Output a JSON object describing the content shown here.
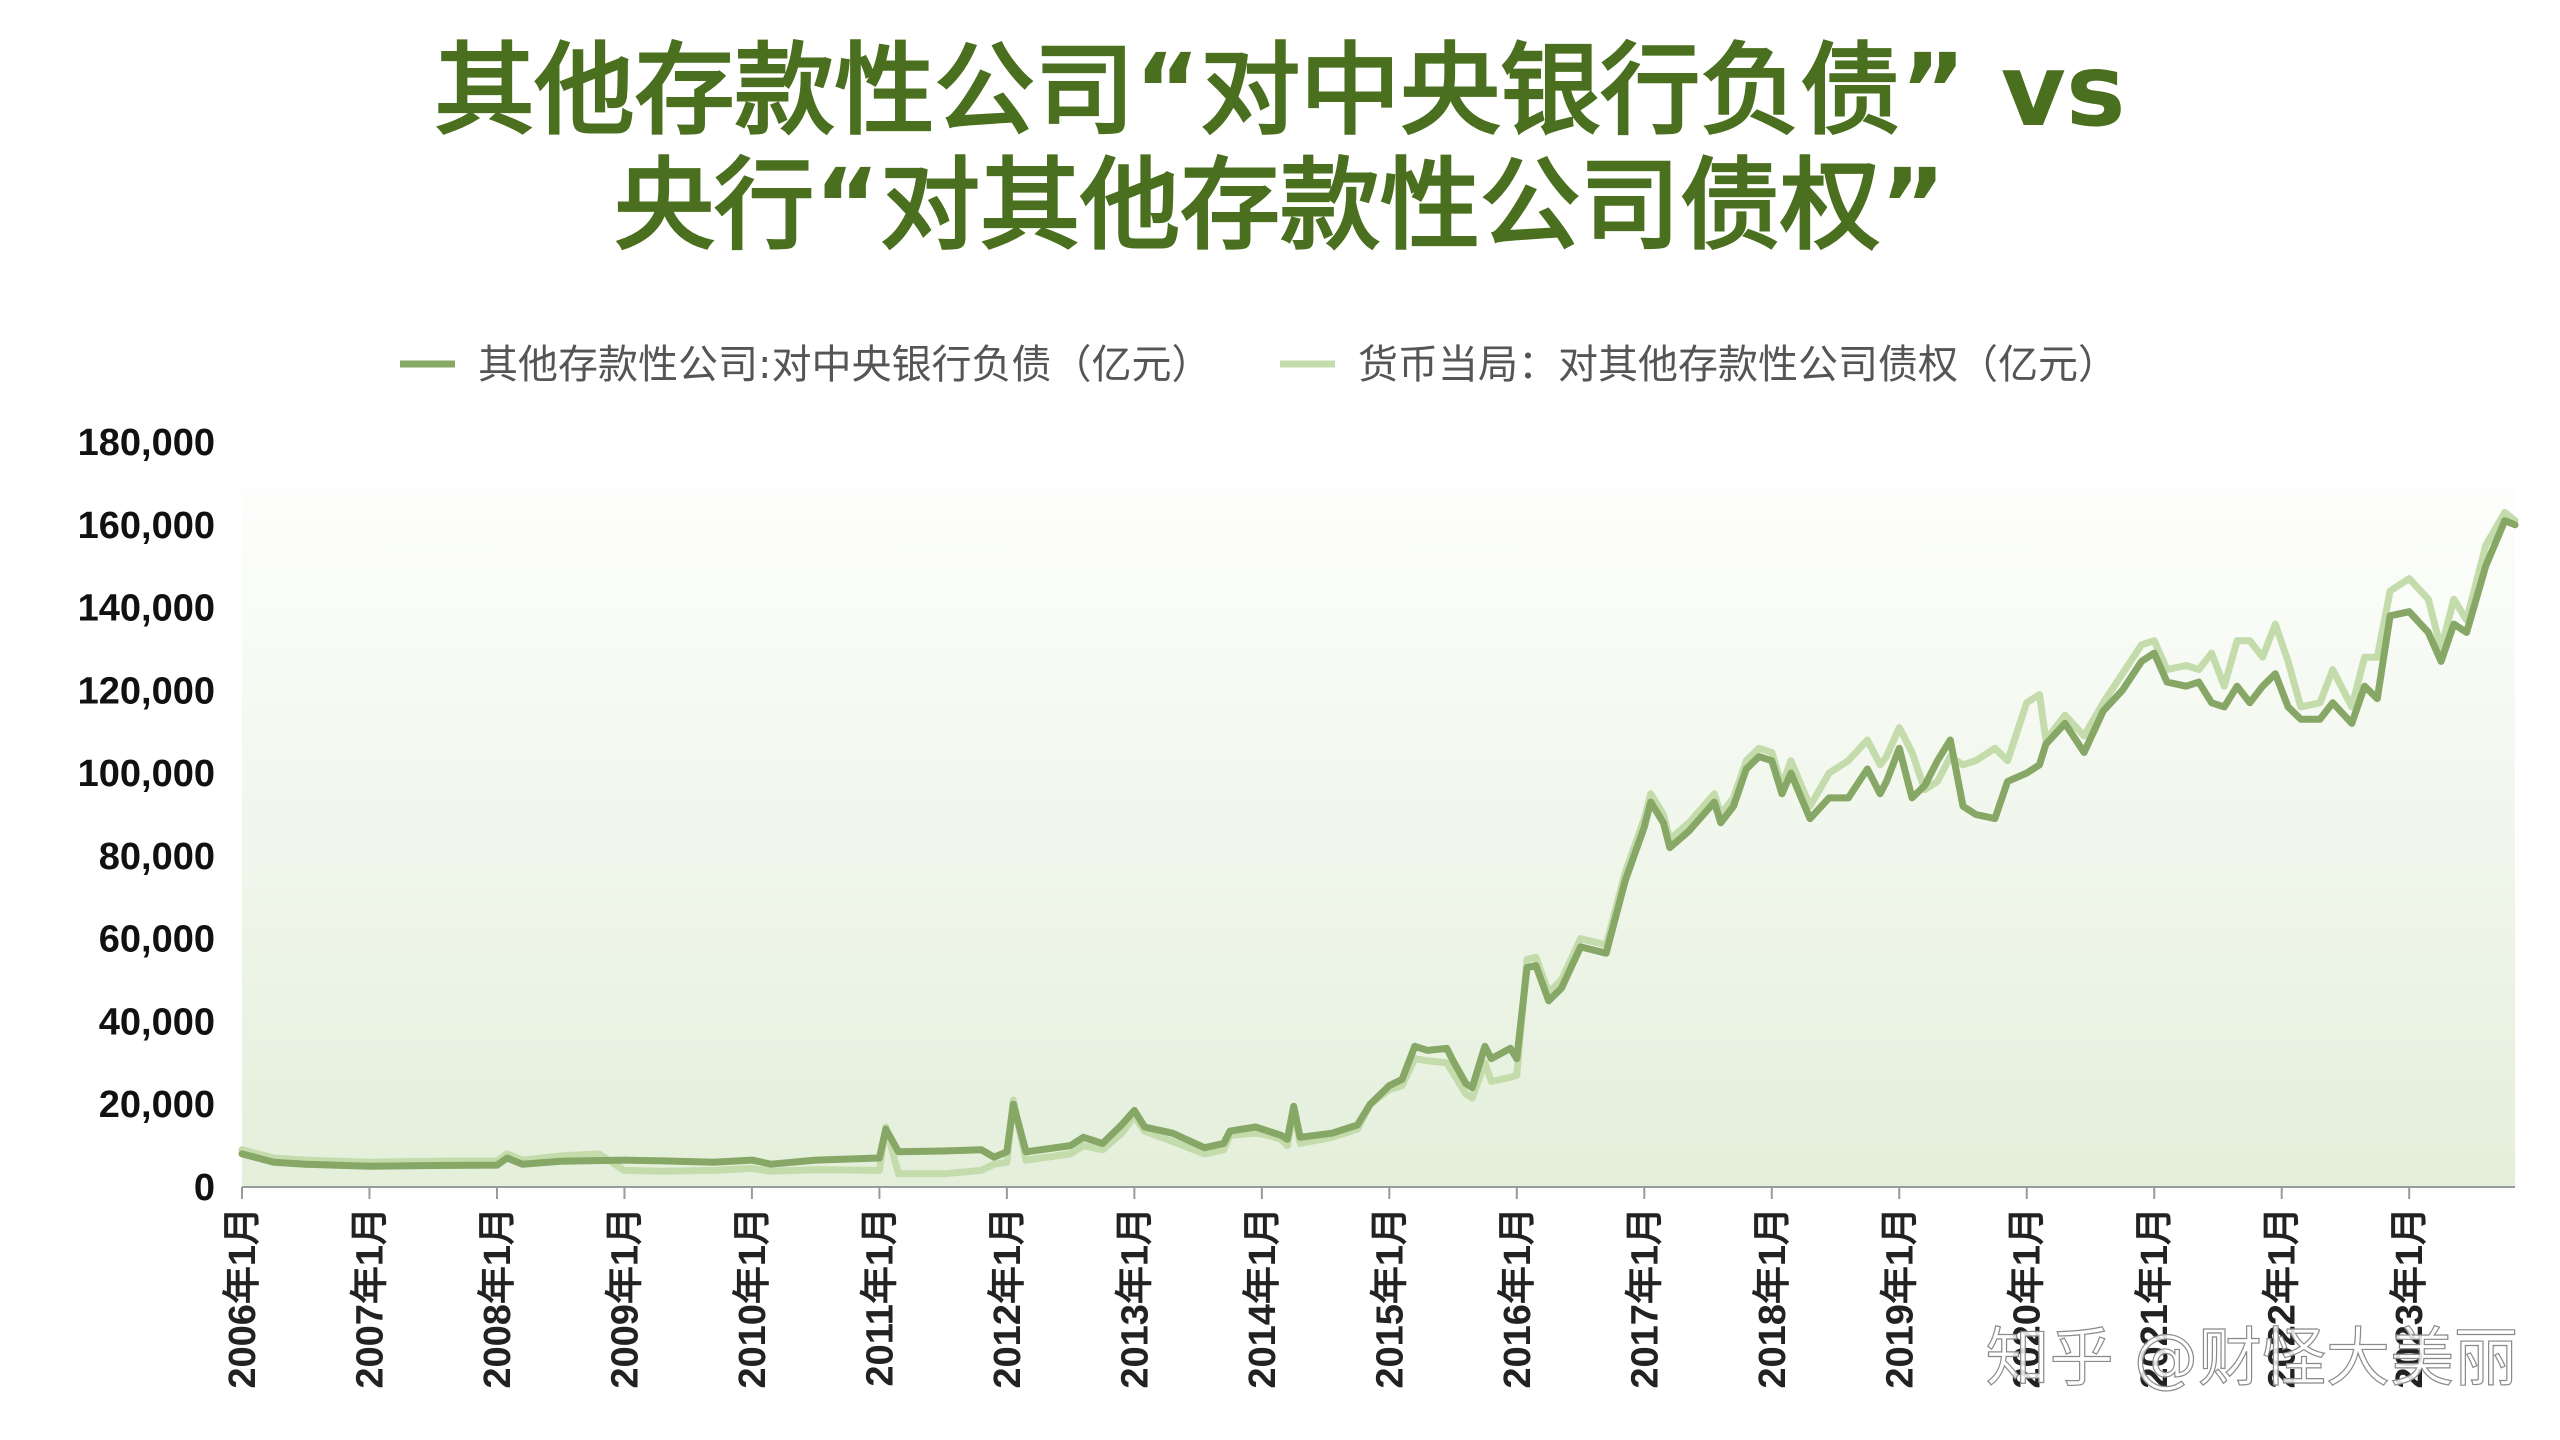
{
  "watermark": "知乎 @财怪大美丽",
  "chart_data": {
    "type": "line",
    "title_lines": [
      "其他存款性公司“对中央银行负债” vs",
      "央行“对其他存款性公司债权”"
    ],
    "xlabel": "",
    "ylabel": "",
    "ylim": [
      0,
      180000
    ],
    "yticks": [
      0,
      20000,
      40000,
      60000,
      80000,
      100000,
      120000,
      140000,
      160000,
      180000
    ],
    "ytick_labels": [
      "0",
      "20,000",
      "40,000",
      "60,000",
      "80,000",
      "100,000",
      "120,000",
      "140,000",
      "160,000",
      "180,000"
    ],
    "xlim": [
      2006.0,
      2023.83
    ],
    "xticks": [
      2006,
      2007,
      2008,
      2009,
      2010,
      2011,
      2012,
      2013,
      2014,
      2015,
      2016,
      2017,
      2018,
      2019,
      2020,
      2021,
      2022,
      2023
    ],
    "xtick_labels": [
      "2006年1月",
      "2007年1月",
      "2008年1月",
      "2009年1月",
      "2010年1月",
      "2011年1月",
      "2012年1月",
      "2013年1月",
      "2014年1月",
      "2015年1月",
      "2016年1月",
      "2017年1月",
      "2018年1月",
      "2019年1月",
      "2020年1月",
      "2021年1月",
      "2022年1月",
      "2023年1月"
    ],
    "legend_position": "top",
    "colors": {
      "series1": "#86a765",
      "series2": "#c4dcab",
      "plot_bg_top": "#ffffff",
      "plot_bg_bottom": "#e4efdb",
      "title": "#4a6f1e"
    },
    "series": [
      {
        "name": "其他存款性公司:对中央银行负债（亿元）",
        "points": [
          [
            2006.0,
            8000
          ],
          [
            2006.25,
            6000
          ],
          [
            2006.5,
            5500
          ],
          [
            2007.0,
            5000
          ],
          [
            2007.5,
            5200
          ],
          [
            2008.0,
            5300
          ],
          [
            2008.08,
            7000
          ],
          [
            2008.2,
            5500
          ],
          [
            2008.5,
            6200
          ],
          [
            2009.0,
            6500
          ],
          [
            2009.3,
            6300
          ],
          [
            2009.7,
            6000
          ],
          [
            2010.0,
            6500
          ],
          [
            2010.15,
            5500
          ],
          [
            2010.5,
            6500
          ],
          [
            2011.0,
            7000
          ],
          [
            2011.05,
            14000
          ],
          [
            2011.15,
            8500
          ],
          [
            2011.5,
            8700
          ],
          [
            2011.8,
            9000
          ],
          [
            2011.9,
            7200
          ],
          [
            2012.0,
            8500
          ],
          [
            2012.05,
            20000
          ],
          [
            2012.15,
            8500
          ],
          [
            2012.5,
            10000
          ],
          [
            2012.6,
            12000
          ],
          [
            2012.75,
            10500
          ],
          [
            2012.9,
            15000
          ],
          [
            2013.0,
            18500
          ],
          [
            2013.08,
            14500
          ],
          [
            2013.3,
            13000
          ],
          [
            2013.55,
            9500
          ],
          [
            2013.7,
            10500
          ],
          [
            2013.75,
            13500
          ],
          [
            2013.95,
            14500
          ],
          [
            2014.05,
            13500
          ],
          [
            2014.15,
            12500
          ],
          [
            2014.2,
            11500
          ],
          [
            2014.25,
            19500
          ],
          [
            2014.3,
            12000
          ],
          [
            2014.55,
            13000
          ],
          [
            2014.75,
            15000
          ],
          [
            2014.85,
            20000
          ],
          [
            2015.0,
            24500
          ],
          [
            2015.1,
            26000
          ],
          [
            2015.2,
            34000
          ],
          [
            2015.3,
            33000
          ],
          [
            2015.45,
            33500
          ],
          [
            2015.5,
            30500
          ],
          [
            2015.6,
            25000
          ],
          [
            2015.65,
            24000
          ],
          [
            2015.75,
            34000
          ],
          [
            2015.8,
            31000
          ],
          [
            2015.95,
            33500
          ],
          [
            2016.0,
            31000
          ],
          [
            2016.08,
            53000
          ],
          [
            2016.15,
            53500
          ],
          [
            2016.25,
            45000
          ],
          [
            2016.35,
            48000
          ],
          [
            2016.5,
            58000
          ],
          [
            2016.7,
            56500
          ],
          [
            2016.85,
            74000
          ],
          [
            2017.0,
            87000
          ],
          [
            2017.05,
            93000
          ],
          [
            2017.15,
            88000
          ],
          [
            2017.2,
            82000
          ],
          [
            2017.35,
            86000
          ],
          [
            2017.55,
            93000
          ],
          [
            2017.6,
            88000
          ],
          [
            2017.7,
            92000
          ],
          [
            2017.8,
            101000
          ],
          [
            2017.9,
            104000
          ],
          [
            2018.0,
            103000
          ],
          [
            2018.08,
            95000
          ],
          [
            2018.15,
            100000
          ],
          [
            2018.3,
            89000
          ],
          [
            2018.45,
            94000
          ],
          [
            2018.6,
            94000
          ],
          [
            2018.75,
            101000
          ],
          [
            2018.85,
            95000
          ],
          [
            2018.9,
            98000
          ],
          [
            2019.0,
            106000
          ],
          [
            2019.1,
            94000
          ],
          [
            2019.2,
            97000
          ],
          [
            2019.3,
            103000
          ],
          [
            2019.4,
            108000
          ],
          [
            2019.5,
            92000
          ],
          [
            2019.6,
            90000
          ],
          [
            2019.75,
            89000
          ],
          [
            2019.85,
            98000
          ],
          [
            2020.0,
            100000
          ],
          [
            2020.1,
            102000
          ],
          [
            2020.15,
            107000
          ],
          [
            2020.3,
            112000
          ],
          [
            2020.45,
            105000
          ],
          [
            2020.6,
            115000
          ],
          [
            2020.75,
            120000
          ],
          [
            2020.9,
            127000
          ],
          [
            2021.0,
            129000
          ],
          [
            2021.1,
            122000
          ],
          [
            2021.25,
            121000
          ],
          [
            2021.35,
            122000
          ],
          [
            2021.45,
            117000
          ],
          [
            2021.55,
            116000
          ],
          [
            2021.65,
            121000
          ],
          [
            2021.75,
            117000
          ],
          [
            2021.85,
            121000
          ],
          [
            2021.95,
            124000
          ],
          [
            2022.05,
            116000
          ],
          [
            2022.15,
            113000
          ],
          [
            2022.3,
            113000
          ],
          [
            2022.4,
            117000
          ],
          [
            2022.55,
            112000
          ],
          [
            2022.65,
            121000
          ],
          [
            2022.75,
            118000
          ],
          [
            2022.85,
            138000
          ],
          [
            2023.0,
            139000
          ],
          [
            2023.15,
            134000
          ],
          [
            2023.25,
            127000
          ],
          [
            2023.35,
            136000
          ],
          [
            2023.45,
            134000
          ],
          [
            2023.6,
            150000
          ],
          [
            2023.75,
            161000
          ],
          [
            2023.83,
            160000
          ]
        ]
      },
      {
        "name": "货币当局：对其他存款性公司债权（亿元）",
        "points": [
          [
            2006.0,
            9000
          ],
          [
            2006.25,
            7000
          ],
          [
            2006.5,
            6500
          ],
          [
            2007.0,
            6000
          ],
          [
            2007.5,
            6200
          ],
          [
            2008.0,
            6300
          ],
          [
            2008.08,
            8000
          ],
          [
            2008.2,
            6500
          ],
          [
            2008.5,
            7500
          ],
          [
            2008.8,
            8000
          ],
          [
            2009.0,
            4000
          ],
          [
            2009.3,
            3800
          ],
          [
            2009.7,
            4000
          ],
          [
            2010.0,
            4500
          ],
          [
            2010.15,
            3800
          ],
          [
            2010.5,
            4200
          ],
          [
            2011.0,
            4000
          ],
          [
            2011.05,
            14500
          ],
          [
            2011.15,
            3200
          ],
          [
            2011.5,
            3200
          ],
          [
            2011.8,
            4000
          ],
          [
            2011.9,
            5500
          ],
          [
            2012.0,
            6000
          ],
          [
            2012.05,
            21000
          ],
          [
            2012.15,
            6500
          ],
          [
            2012.5,
            8000
          ],
          [
            2012.6,
            10000
          ],
          [
            2012.75,
            9000
          ],
          [
            2012.9,
            13000
          ],
          [
            2013.0,
            17000
          ],
          [
            2013.08,
            13500
          ],
          [
            2013.3,
            11000
          ],
          [
            2013.55,
            8000
          ],
          [
            2013.7,
            9000
          ],
          [
            2013.75,
            12500
          ],
          [
            2013.95,
            13000
          ],
          [
            2014.05,
            12500
          ],
          [
            2014.15,
            11500
          ],
          [
            2014.2,
            10000
          ],
          [
            2014.25,
            18500
          ],
          [
            2014.3,
            10500
          ],
          [
            2014.55,
            12000
          ],
          [
            2014.75,
            14000
          ],
          [
            2014.85,
            20000
          ],
          [
            2015.0,
            23500
          ],
          [
            2015.1,
            24500
          ],
          [
            2015.2,
            31000
          ],
          [
            2015.3,
            30500
          ],
          [
            2015.45,
            30000
          ],
          [
            2015.5,
            27500
          ],
          [
            2015.6,
            22500
          ],
          [
            2015.65,
            21500
          ],
          [
            2015.75,
            30000
          ],
          [
            2015.8,
            25500
          ],
          [
            2015.95,
            26500
          ],
          [
            2016.0,
            27000
          ],
          [
            2016.08,
            55000
          ],
          [
            2016.15,
            55500
          ],
          [
            2016.25,
            47000
          ],
          [
            2016.35,
            50000
          ],
          [
            2016.5,
            60000
          ],
          [
            2016.7,
            58500
          ],
          [
            2016.85,
            76000
          ],
          [
            2017.0,
            89000
          ],
          [
            2017.05,
            95000
          ],
          [
            2017.15,
            90000
          ],
          [
            2017.2,
            84000
          ],
          [
            2017.35,
            88000
          ],
          [
            2017.55,
            95000
          ],
          [
            2017.6,
            90000
          ],
          [
            2017.7,
            94000
          ],
          [
            2017.8,
            103000
          ],
          [
            2017.9,
            106000
          ],
          [
            2018.0,
            105000
          ],
          [
            2018.08,
            97000
          ],
          [
            2018.15,
            103000
          ],
          [
            2018.3,
            92000
          ],
          [
            2018.45,
            100000
          ],
          [
            2018.6,
            103000
          ],
          [
            2018.75,
            108000
          ],
          [
            2018.85,
            102000
          ],
          [
            2018.9,
            104000
          ],
          [
            2019.0,
            111000
          ],
          [
            2019.1,
            105000
          ],
          [
            2019.2,
            96000
          ],
          [
            2019.3,
            98000
          ],
          [
            2019.4,
            104000
          ],
          [
            2019.5,
            102000
          ],
          [
            2019.6,
            103000
          ],
          [
            2019.75,
            106000
          ],
          [
            2019.85,
            103000
          ],
          [
            2020.0,
            117000
          ],
          [
            2020.1,
            119000
          ],
          [
            2020.15,
            108000
          ],
          [
            2020.3,
            114000
          ],
          [
            2020.45,
            109000
          ],
          [
            2020.6,
            117000
          ],
          [
            2020.75,
            124000
          ],
          [
            2020.9,
            131000
          ],
          [
            2021.0,
            132000
          ],
          [
            2021.1,
            125000
          ],
          [
            2021.25,
            126000
          ],
          [
            2021.35,
            125000
          ],
          [
            2021.45,
            129000
          ],
          [
            2021.55,
            121000
          ],
          [
            2021.65,
            132000
          ],
          [
            2021.75,
            132000
          ],
          [
            2021.85,
            128000
          ],
          [
            2021.95,
            136000
          ],
          [
            2022.05,
            127000
          ],
          [
            2022.15,
            116000
          ],
          [
            2022.3,
            117000
          ],
          [
            2022.4,
            125000
          ],
          [
            2022.55,
            116000
          ],
          [
            2022.65,
            128000
          ],
          [
            2022.75,
            128000
          ],
          [
            2022.85,
            144000
          ],
          [
            2023.0,
            147000
          ],
          [
            2023.15,
            142000
          ],
          [
            2023.25,
            130000
          ],
          [
            2023.35,
            142000
          ],
          [
            2023.45,
            137000
          ],
          [
            2023.6,
            155000
          ],
          [
            2023.75,
            163000
          ],
          [
            2023.83,
            161000
          ]
        ]
      }
    ]
  }
}
